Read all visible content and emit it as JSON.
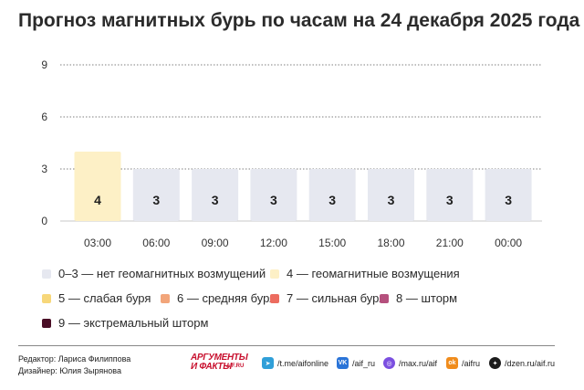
{
  "chart_data": {
    "type": "bar",
    "title": "Прогноз магнитных бурь по часам на 24 декабря 2025 года",
    "categories": [
      "03:00",
      "06:00",
      "09:00",
      "12:00",
      "15:00",
      "18:00",
      "21:00",
      "00:00"
    ],
    "values": [
      4,
      3,
      3,
      3,
      3,
      3,
      3,
      3
    ],
    "yticks": [
      0,
      3,
      6,
      9
    ],
    "ylim": [
      0,
      9
    ],
    "grid": true,
    "legend": [
      {
        "label": "0–3 — нет геомагнитных возмущений",
        "color": "#e6e8f0"
      },
      {
        "label": "4 — геомагнитные возмущения",
        "color": "#fdf0c6"
      },
      {
        "label": "5 — слабая буря",
        "color": "#f7d77a"
      },
      {
        "label": "6 — средняя буря",
        "color": "#f2a57a"
      },
      {
        "label": "7 — сильная буря",
        "color": "#ec6c5f"
      },
      {
        "label": "8 — шторм",
        "color": "#b5507d"
      },
      {
        "label": "9 — экстремальный шторм",
        "color": "#4a0e26"
      }
    ]
  },
  "colors": {
    "level_0_3": "#e6e8f0",
    "level_4": "#fdf0c6"
  },
  "credits": {
    "editor": "Редактор: Лариса Филиппова",
    "designer": "Дизайнер: Юлия Зырянова"
  },
  "logo": {
    "line1": "АРГУМЕНТЫ",
    "line2": "И ФАКТЫ",
    "site": "AIF.RU"
  },
  "social": [
    {
      "icon": "telegram-icon",
      "text": "/t.me/aifonline",
      "color": "#2f9fd8",
      "glyph": "➤"
    },
    {
      "icon": "vk-icon",
      "text": "/aif_ru",
      "color": "#2a74d8",
      "glyph": "VK"
    },
    {
      "icon": "max-icon",
      "text": "/max.ru/aif",
      "color": "#7b4fe0",
      "glyph": "◎"
    },
    {
      "icon": "odnoklassniki-icon",
      "text": "/aifru",
      "color": "#f08c1c",
      "glyph": "ok"
    },
    {
      "icon": "dzen-icon",
      "text": "/dzen.ru/aif.ru",
      "color": "#1c1c1c",
      "glyph": "✦"
    }
  ]
}
